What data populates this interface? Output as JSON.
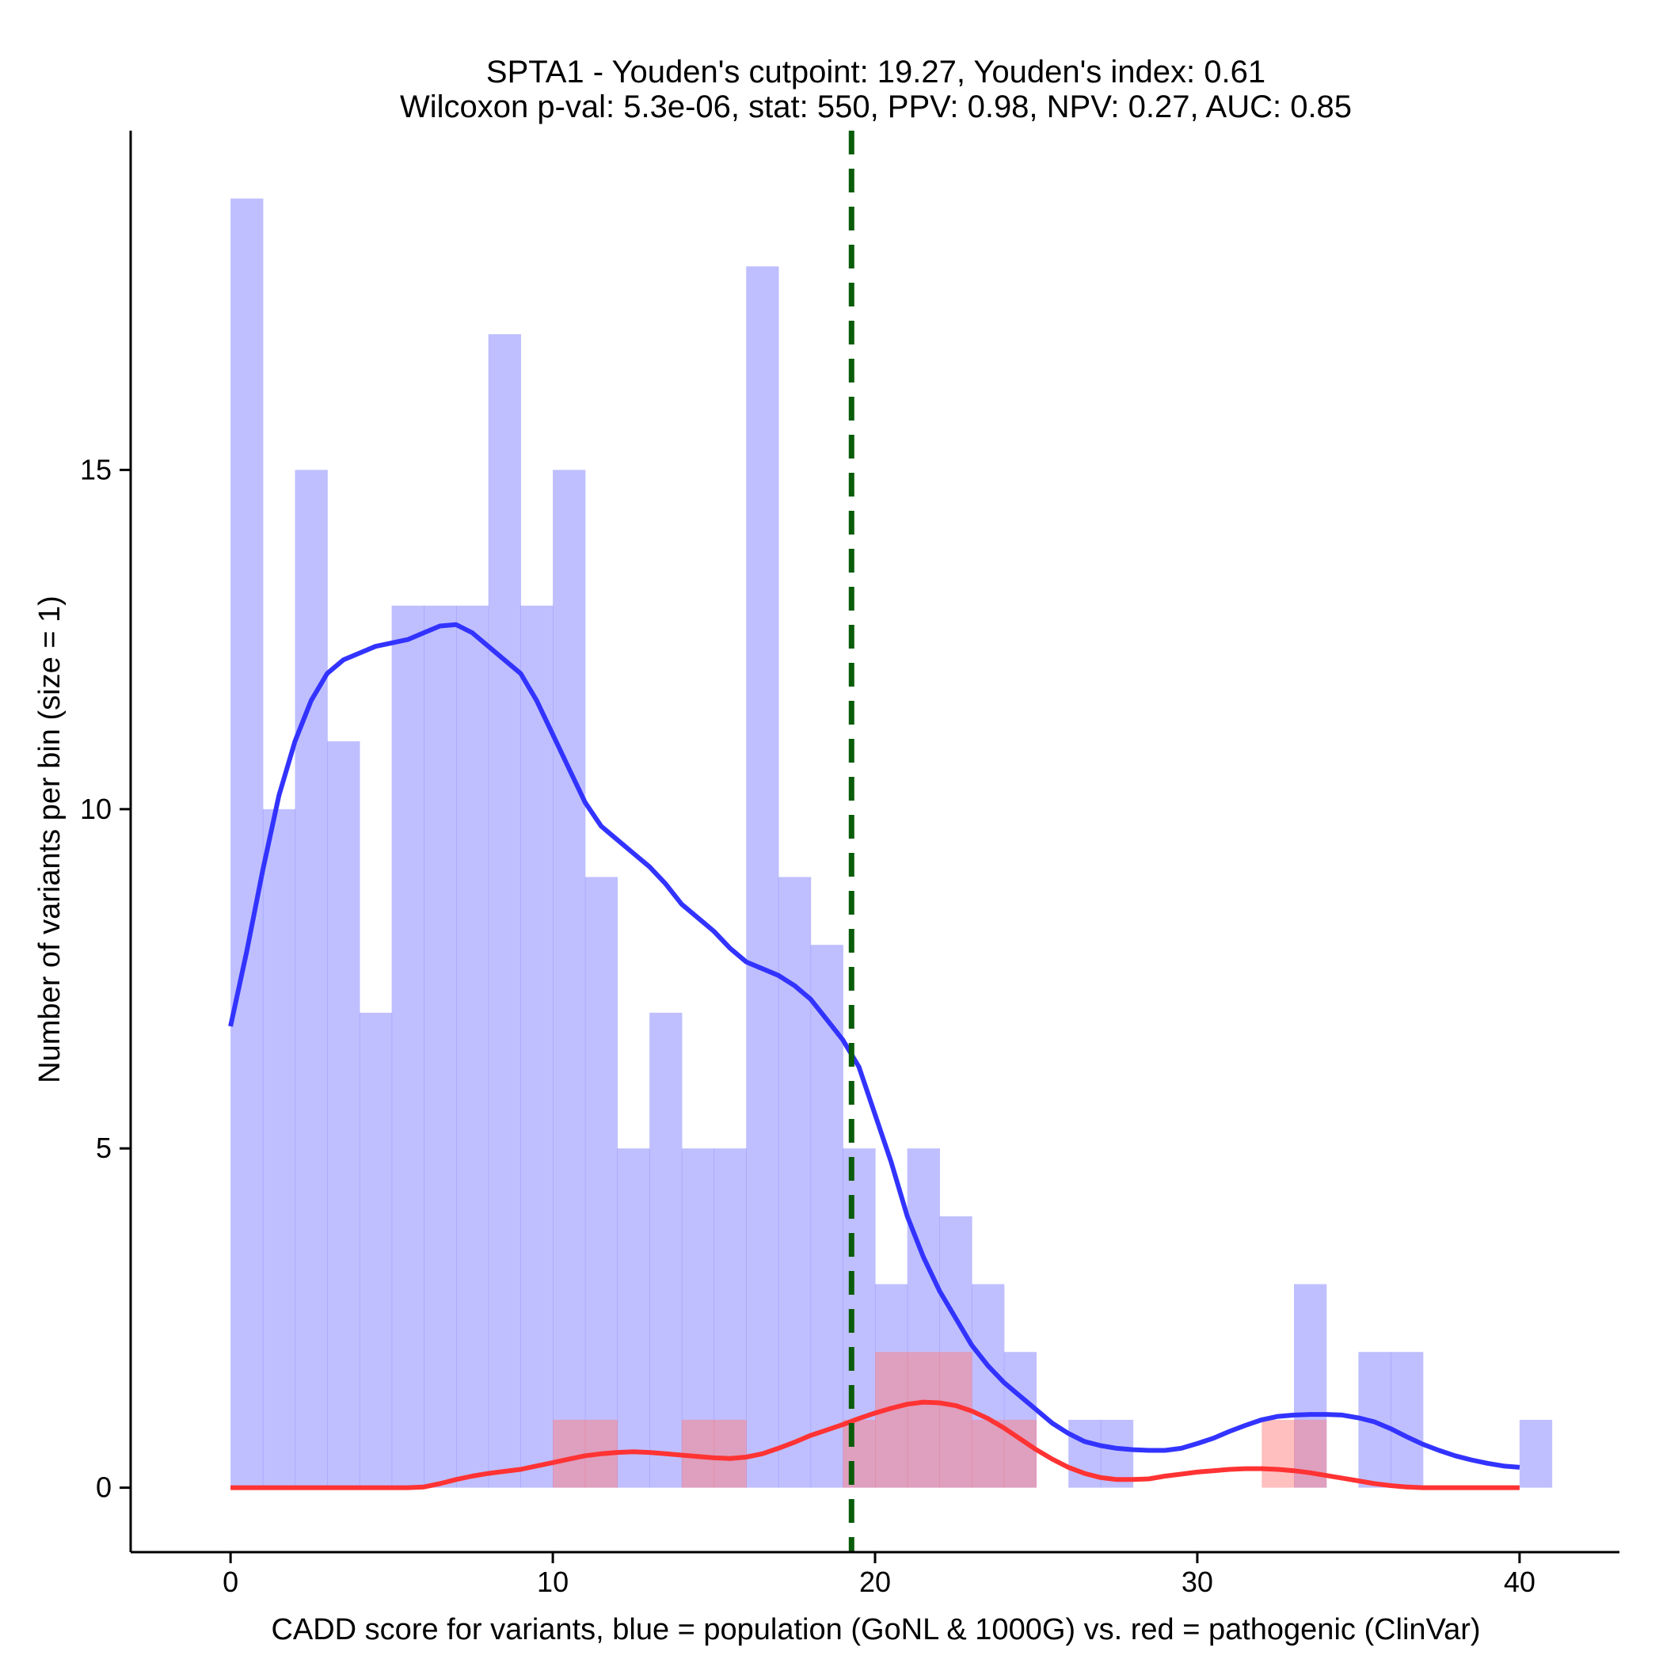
{
  "chart_data": {
    "type": "histogram",
    "title_line1": "SPTA1 - Youden's cutpoint: 19.27, Youden's index: 0.61",
    "title_line2": "Wilcoxon p-val: 5.3e-06, stat: 550, PPV: 0.98, NPV: 0.27, AUC: 0.85",
    "xlabel": "CADD score for variants, blue = population (GoNL & 1000G) vs. red = pathogenic (ClinVar)",
    "ylabel": "Number of variants per bin (size = 1)",
    "xlim": [
      -3.1,
      43.1
    ],
    "ylim": [
      -0.95,
      20.0
    ],
    "xticks": [
      0,
      10,
      20,
      30,
      40
    ],
    "yticks": [
      0,
      5,
      10,
      15
    ],
    "bin_size": 1,
    "cutpoint": 19.27,
    "colors": {
      "population_bar": "#8080ff",
      "pathogenic_bar": "#ff8080",
      "population_line": "#3333ff",
      "pathogenic_line": "#ff3333",
      "cutpoint_line": "#0a5c0a"
    },
    "series": [
      {
        "name": "population (GoNL & 1000G)",
        "bins": [
          [
            0,
            19
          ],
          [
            1,
            10
          ],
          [
            2,
            15
          ],
          [
            3,
            11
          ],
          [
            4,
            7
          ],
          [
            5,
            13
          ],
          [
            6,
            13
          ],
          [
            7,
            13
          ],
          [
            8,
            17
          ],
          [
            9,
            13
          ],
          [
            10,
            15
          ],
          [
            11,
            9
          ],
          [
            12,
            5
          ],
          [
            13,
            7
          ],
          [
            14,
            5
          ],
          [
            15,
            5
          ],
          [
            16,
            18
          ],
          [
            17,
            9
          ],
          [
            18,
            8
          ],
          [
            19,
            5
          ],
          [
            20,
            3
          ],
          [
            21,
            5
          ],
          [
            22,
            4
          ],
          [
            23,
            3
          ],
          [
            24,
            2
          ],
          [
            26,
            1
          ],
          [
            27,
            1
          ],
          [
            33,
            3
          ],
          [
            35,
            2
          ],
          [
            36,
            2
          ],
          [
            40,
            1
          ]
        ],
        "density": [
          [
            0,
            6.8
          ],
          [
            0.5,
            7.9
          ],
          [
            1,
            9.1
          ],
          [
            1.5,
            10.2
          ],
          [
            2,
            11.0
          ],
          [
            2.5,
            11.6
          ],
          [
            3,
            12.0
          ],
          [
            3.5,
            12.2
          ],
          [
            4,
            12.3
          ],
          [
            4.5,
            12.4
          ],
          [
            5,
            12.45
          ],
          [
            5.5,
            12.5
          ],
          [
            6,
            12.6
          ],
          [
            6.5,
            12.7
          ],
          [
            7,
            12.72
          ],
          [
            7.5,
            12.6
          ],
          [
            8,
            12.4
          ],
          [
            8.5,
            12.2
          ],
          [
            9,
            12.0
          ],
          [
            9.5,
            11.6
          ],
          [
            10,
            11.1
          ],
          [
            10.5,
            10.6
          ],
          [
            11,
            10.1
          ],
          [
            11.5,
            9.75
          ],
          [
            12,
            9.55
          ],
          [
            12.5,
            9.35
          ],
          [
            13,
            9.15
          ],
          [
            13.5,
            8.9
          ],
          [
            14,
            8.6
          ],
          [
            14.5,
            8.4
          ],
          [
            15,
            8.2
          ],
          [
            15.5,
            7.95
          ],
          [
            16,
            7.75
          ],
          [
            16.5,
            7.65
          ],
          [
            17,
            7.55
          ],
          [
            17.5,
            7.4
          ],
          [
            18,
            7.2
          ],
          [
            18.5,
            6.9
          ],
          [
            19,
            6.6
          ],
          [
            19.5,
            6.2
          ],
          [
            20,
            5.5
          ],
          [
            20.5,
            4.8
          ],
          [
            21,
            4.0
          ],
          [
            21.5,
            3.4
          ],
          [
            22,
            2.9
          ],
          [
            22.5,
            2.5
          ],
          [
            23,
            2.1
          ],
          [
            23.5,
            1.8
          ],
          [
            24,
            1.55
          ],
          [
            24.5,
            1.35
          ],
          [
            25,
            1.15
          ],
          [
            25.5,
            0.95
          ],
          [
            26,
            0.8
          ],
          [
            26.5,
            0.68
          ],
          [
            27,
            0.62
          ],
          [
            27.5,
            0.58
          ],
          [
            28,
            0.56
          ],
          [
            28.5,
            0.55
          ],
          [
            29,
            0.55
          ],
          [
            29.5,
            0.58
          ],
          [
            30,
            0.65
          ],
          [
            30.5,
            0.73
          ],
          [
            31,
            0.83
          ],
          [
            31.5,
            0.92
          ],
          [
            32,
            1.0
          ],
          [
            32.5,
            1.05
          ],
          [
            33,
            1.07
          ],
          [
            33.5,
            1.08
          ],
          [
            34,
            1.08
          ],
          [
            34.5,
            1.07
          ],
          [
            35,
            1.03
          ],
          [
            35.5,
            0.97
          ],
          [
            36,
            0.87
          ],
          [
            36.5,
            0.75
          ],
          [
            37,
            0.64
          ],
          [
            37.5,
            0.55
          ],
          [
            38,
            0.47
          ],
          [
            38.5,
            0.41
          ],
          [
            39,
            0.36
          ],
          [
            39.5,
            0.32
          ],
          [
            40,
            0.3
          ]
        ]
      },
      {
        "name": "pathogenic (ClinVar)",
        "bins": [
          [
            10,
            1
          ],
          [
            11,
            1
          ],
          [
            14,
            1
          ],
          [
            15,
            1
          ],
          [
            19,
            1
          ],
          [
            20,
            2
          ],
          [
            21,
            2
          ],
          [
            22,
            2
          ],
          [
            23,
            1
          ],
          [
            24,
            1
          ],
          [
            32,
            1
          ],
          [
            33,
            1
          ]
        ],
        "density": [
          [
            0,
            0
          ],
          [
            1,
            0
          ],
          [
            2,
            0
          ],
          [
            3,
            0
          ],
          [
            4,
            0
          ],
          [
            5,
            0
          ],
          [
            5.5,
            0
          ],
          [
            6,
            0.01
          ],
          [
            6.5,
            0.06
          ],
          [
            7,
            0.12
          ],
          [
            7.5,
            0.17
          ],
          [
            8,
            0.21
          ],
          [
            8.5,
            0.24
          ],
          [
            9,
            0.27
          ],
          [
            9.5,
            0.32
          ],
          [
            10,
            0.37
          ],
          [
            10.5,
            0.42
          ],
          [
            11,
            0.47
          ],
          [
            11.5,
            0.5
          ],
          [
            12,
            0.52
          ],
          [
            12.5,
            0.53
          ],
          [
            13,
            0.52
          ],
          [
            13.5,
            0.5
          ],
          [
            14,
            0.48
          ],
          [
            14.5,
            0.46
          ],
          [
            15,
            0.44
          ],
          [
            15.5,
            0.43
          ],
          [
            16,
            0.45
          ],
          [
            16.5,
            0.5
          ],
          [
            17,
            0.58
          ],
          [
            17.5,
            0.67
          ],
          [
            18,
            0.77
          ],
          [
            18.5,
            0.85
          ],
          [
            19,
            0.93
          ],
          [
            19.5,
            1.02
          ],
          [
            20,
            1.1
          ],
          [
            20.5,
            1.17
          ],
          [
            21,
            1.23
          ],
          [
            21.5,
            1.26
          ],
          [
            22,
            1.25
          ],
          [
            22.5,
            1.21
          ],
          [
            23,
            1.13
          ],
          [
            23.5,
            1.02
          ],
          [
            24,
            0.88
          ],
          [
            24.5,
            0.72
          ],
          [
            25,
            0.56
          ],
          [
            25.5,
            0.42
          ],
          [
            26,
            0.3
          ],
          [
            26.5,
            0.21
          ],
          [
            27,
            0.15
          ],
          [
            27.5,
            0.12
          ],
          [
            28,
            0.12
          ],
          [
            28.5,
            0.13
          ],
          [
            29,
            0.17
          ],
          [
            29.5,
            0.2
          ],
          [
            30,
            0.23
          ],
          [
            30.5,
            0.25
          ],
          [
            31,
            0.27
          ],
          [
            31.5,
            0.28
          ],
          [
            32,
            0.28
          ],
          [
            32.5,
            0.27
          ],
          [
            33,
            0.25
          ],
          [
            33.5,
            0.22
          ],
          [
            34,
            0.18
          ],
          [
            34.5,
            0.14
          ],
          [
            35,
            0.1
          ],
          [
            35.5,
            0.06
          ],
          [
            36,
            0.03
          ],
          [
            36.5,
            0.01
          ],
          [
            37,
            0
          ],
          [
            38,
            0
          ],
          [
            39,
            0
          ],
          [
            40,
            0
          ]
        ]
      }
    ]
  }
}
